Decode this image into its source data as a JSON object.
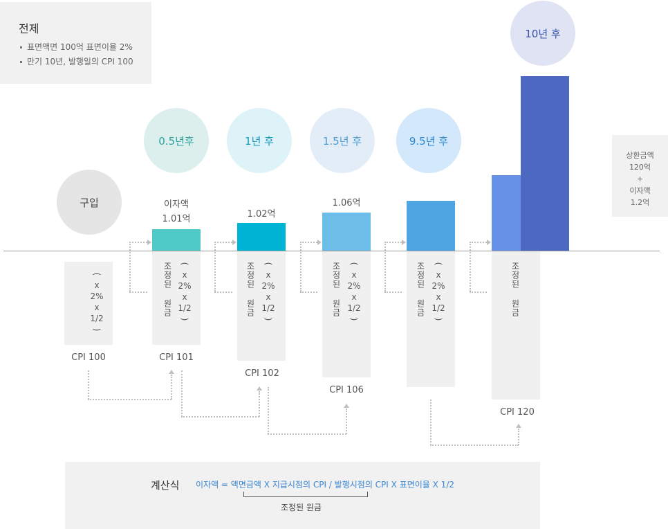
{
  "premise": {
    "title": "전제",
    "items": [
      "표면액면 100억 표면이율 2%",
      "만기 10년, 발행일의 CPI 100"
    ]
  },
  "stages": [
    {
      "label": "구입",
      "cpi": "CPI 100"
    },
    {
      "label": "0.5년후",
      "amount_label": "이자액",
      "amount": "1.01억",
      "cpi": "CPI 101"
    },
    {
      "label": "1년 후",
      "amount": "1.02억",
      "cpi": "CPI 102"
    },
    {
      "label": "1.5년 후",
      "amount": "1.06억",
      "cpi": "CPI 106"
    },
    {
      "label": "9.5년 후"
    },
    {
      "label": "10년 후",
      "cpi": "CPI 120"
    }
  ],
  "adjusted_principal": "조정된 원금",
  "formula_factor": {
    "paren_open": "(",
    "x1": "x",
    "rate": "2%",
    "x2": "x",
    "half": "1/2",
    "paren_close": ")"
  },
  "repayment": {
    "line1": "상환금액",
    "line2": "120억",
    "line3": "+",
    "line4": "이자액",
    "line5": "1.2억"
  },
  "calc": {
    "label": "계산식",
    "formula": "이자액 = 액면금액 X 지급시점의 CPI / 발행시점의 CPI X 표면이율 X 1/2",
    "bracket_label": "조정된 원금"
  },
  "colors": {
    "bar1": "#4ecbc9",
    "bar2": "#00b4d6",
    "bar3": "#6dbde9",
    "bar4": "#4ea5e2",
    "bar5": "#6592e6",
    "bar6": "#4c68c0"
  }
}
